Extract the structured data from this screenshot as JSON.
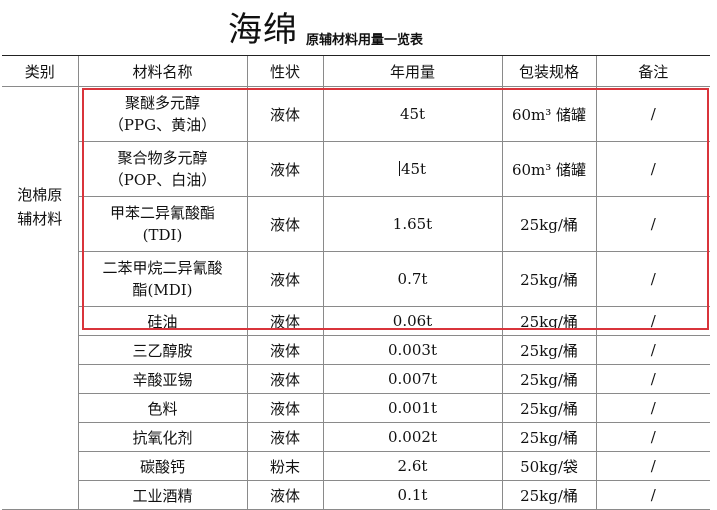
{
  "title": {
    "main": "海绵",
    "sub": "原辅材料用量一览表"
  },
  "headers": [
    "类别",
    "材料名称",
    "性状",
    "年用量",
    "包装规格",
    "备注"
  ],
  "category": {
    "line1": "泡棉原",
    "line2": "辅材料"
  },
  "rows": [
    {
      "name1": "聚醚多元醇",
      "name2": "（PPG、黄油）",
      "state": "液体",
      "amount": "45t",
      "pack": "60m³ 储罐",
      "note": "/"
    },
    {
      "name1": "聚合物多元醇",
      "name2": "（POP、白油）",
      "state": "液体",
      "amount": "45t",
      "pack": "60m³ 储罐",
      "note": "/"
    },
    {
      "name1": "甲苯二异氰酸酯",
      "name2": "(TDI)",
      "state": "液体",
      "amount": "1.65t",
      "pack": "25kg/桶",
      "note": "/"
    },
    {
      "name1": "二苯甲烷二异氰酸",
      "name2": "酯(MDI)",
      "state": "液体",
      "amount": "0.7t",
      "pack": "25kg/桶",
      "note": "/"
    },
    {
      "name1": "硅油",
      "state": "液体",
      "amount": "0.06t",
      "pack": "25kg/桶",
      "note": "/"
    },
    {
      "name1": "三乙醇胺",
      "state": "液体",
      "amount": "0.003t",
      "pack": "25kg/桶",
      "note": "/"
    },
    {
      "name1": "辛酸亚锡",
      "state": "液体",
      "amount": "0.007t",
      "pack": "25kg/桶",
      "note": "/"
    },
    {
      "name1": "色料",
      "state": "液体",
      "amount": "0.001t",
      "pack": "25kg/桶",
      "note": "/"
    },
    {
      "name1": "抗氧化剂",
      "state": "液体",
      "amount": "0.002t",
      "pack": "25kg/桶",
      "note": "/"
    },
    {
      "name1": "碳酸钙",
      "state": "粉末",
      "amount": "2.6t",
      "pack": "50kg/袋",
      "note": "/"
    },
    {
      "name1": "工业酒精",
      "state": "液体",
      "amount": "0.1t",
      "pack": "25kg/桶",
      "note": "/"
    }
  ],
  "highlight_color": "#d9343b"
}
